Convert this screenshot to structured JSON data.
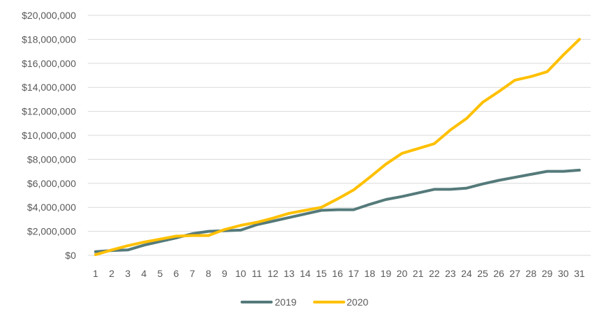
{
  "chart_data": {
    "type": "line",
    "title": "",
    "xlabel": "",
    "ylabel": "",
    "x": [
      1,
      2,
      3,
      4,
      5,
      6,
      7,
      8,
      9,
      10,
      11,
      12,
      13,
      14,
      15,
      16,
      17,
      18,
      19,
      20,
      21,
      22,
      23,
      24,
      25,
      26,
      27,
      28,
      29,
      30,
      31
    ],
    "ylim": [
      0,
      20000000
    ],
    "yticks": [
      0,
      2000000,
      4000000,
      6000000,
      8000000,
      10000000,
      12000000,
      14000000,
      16000000,
      18000000,
      20000000
    ],
    "ytick_labels": [
      "$0",
      "$2,000,000",
      "$4,000,000",
      "$6,000,000",
      "$8,000,000",
      "$10,000,000",
      "$12,000,000",
      "$14,000,000",
      "$16,000,000",
      "$18,000,000",
      "$20,000,000"
    ],
    "grid": "horizontal",
    "legend_position": "bottom",
    "series": [
      {
        "name": "2019",
        "color": "#557a7a",
        "values": [
          300000,
          400000,
          450000,
          850000,
          1150000,
          1450000,
          1800000,
          2000000,
          2050000,
          2100000,
          2550000,
          2850000,
          3150000,
          3450000,
          3750000,
          3800000,
          3800000,
          4250000,
          4650000,
          4900000,
          5200000,
          5500000,
          5500000,
          5600000,
          5950000,
          6250000,
          6500000,
          6750000,
          7000000,
          7000000,
          7100000
        ]
      },
      {
        "name": "2020",
        "color": "#ffc000",
        "values": [
          50000,
          450000,
          800000,
          1100000,
          1350000,
          1600000,
          1650000,
          1650000,
          2150000,
          2500000,
          2750000,
          3100000,
          3500000,
          3750000,
          4000000,
          4700000,
          5450000,
          6500000,
          7600000,
          8500000,
          8900000,
          9300000,
          10450000,
          11400000,
          12750000,
          13650000,
          14600000,
          14900000,
          15300000,
          16700000,
          18000000
        ]
      }
    ]
  }
}
